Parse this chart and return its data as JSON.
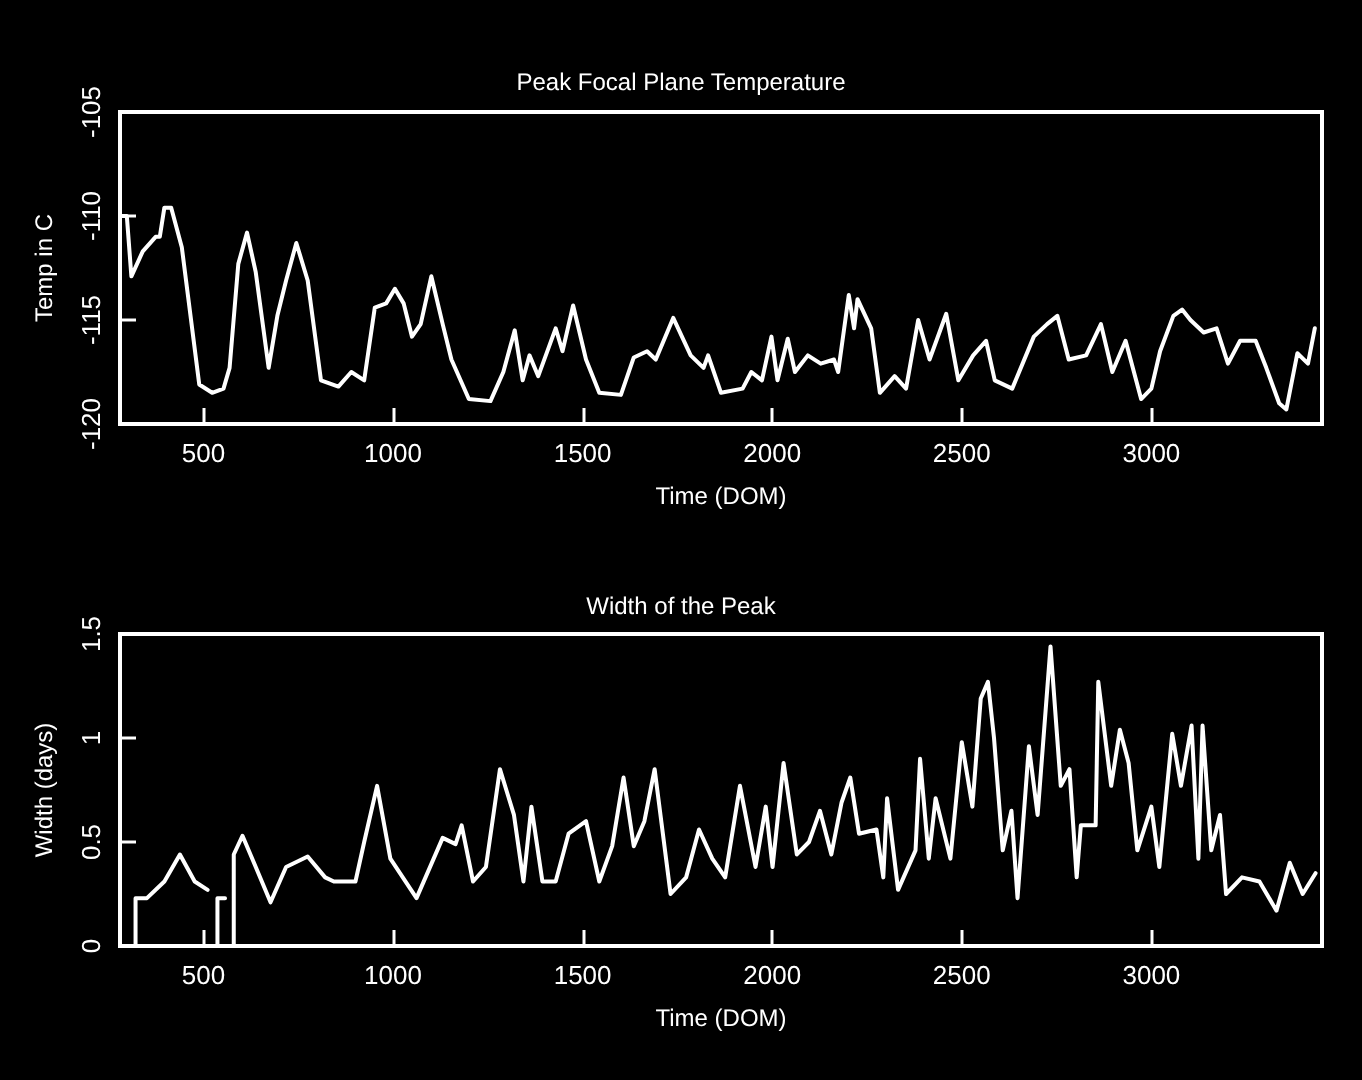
{
  "chart_data": [
    {
      "type": "line",
      "title": "Peak Focal Plane Temperature",
      "xlabel": "Time (DOM)",
      "ylabel": "Temp in C",
      "xlim": [
        280,
        3450
      ],
      "xticks": [
        500,
        1000,
        1500,
        2000,
        2500,
        3000
      ],
      "ylim": [
        -120,
        -105
      ],
      "yticks": [
        -120,
        -115,
        -110,
        -105
      ],
      "grid": false,
      "marker": "none",
      "line_style": "solid",
      "series": [
        {
          "color": "#ffffff",
          "x": [
            282,
            298,
            310,
            340,
            374,
            385,
            397,
            415,
            443,
            489,
            523,
            553,
            569,
            592,
            615,
            638,
            672,
            695,
            718,
            745,
            775,
            810,
            856,
            890,
            924,
            952,
            982,
            1005,
            1028,
            1050,
            1073,
            1101,
            1131,
            1154,
            1200,
            1257,
            1291,
            1321,
            1342,
            1360,
            1383,
            1429,
            1447,
            1475,
            1509,
            1544,
            1601,
            1635,
            1670,
            1693,
            1739,
            1785,
            1819,
            1831,
            1865,
            1922,
            1945,
            1973,
            1998,
            2014,
            2041,
            2060,
            2094,
            2128,
            2163,
            2174,
            2202,
            2216,
            2225,
            2261,
            2284,
            2323,
            2353,
            2385,
            2415,
            2459,
            2491,
            2530,
            2564,
            2587,
            2633,
            2690,
            2725,
            2752,
            2782,
            2828,
            2867,
            2897,
            2932,
            2973,
            3000,
            3023,
            3058,
            3081,
            3103,
            3138,
            3172,
            3202,
            3234,
            3275,
            3303,
            3337,
            3356,
            3385,
            3413,
            3431
          ],
          "values": [
            -110,
            -110,
            -112.9,
            -111.7,
            -111,
            -111,
            -109.6,
            -109.6,
            -111.5,
            -118.1,
            -118.5,
            -118.3,
            -117.3,
            -112.3,
            -110.8,
            -112.7,
            -117.3,
            -114.8,
            -113.1,
            -111.3,
            -113.1,
            -117.9,
            -118.2,
            -117.5,
            -117.9,
            -114.4,
            -114.2,
            -113.5,
            -114.2,
            -115.8,
            -115.2,
            -112.9,
            -115.2,
            -116.9,
            -118.8,
            -118.9,
            -117.5,
            -115.5,
            -117.9,
            -116.7,
            -117.7,
            -115.4,
            -116.5,
            -114.3,
            -116.9,
            -118.5,
            -118.6,
            -116.8,
            -116.5,
            -116.9,
            -114.9,
            -116.7,
            -117.3,
            -116.7,
            -118.5,
            -118.3,
            -117.5,
            -117.9,
            -115.8,
            -117.9,
            -115.9,
            -117.5,
            -116.7,
            -117.1,
            -116.9,
            -117.5,
            -113.8,
            -115.4,
            -114,
            -115.4,
            -118.5,
            -117.7,
            -118.3,
            -115,
            -116.9,
            -114.7,
            -117.9,
            -116.7,
            -116,
            -117.9,
            -118.3,
            -115.8,
            -115.2,
            -114.8,
            -116.9,
            -116.7,
            -115.2,
            -117.5,
            -116,
            -118.8,
            -118.3,
            -116.5,
            -114.8,
            -114.5,
            -115,
            -115.6,
            -115.4,
            -117.1,
            -116,
            -116,
            -117.3,
            -119,
            -119.3,
            -116.6,
            -117.1,
            -115.4
          ]
        }
      ]
    },
    {
      "type": "line",
      "title": "Width of the Peak",
      "xlabel": "Time (DOM)",
      "ylabel": "Width (days)",
      "xlim": [
        280,
        3450
      ],
      "xticks": [
        500,
        1000,
        1500,
        2000,
        2500,
        3000
      ],
      "ylim": [
        0,
        1.5
      ],
      "yticks": [
        0,
        0.5,
        1,
        1.5
      ],
      "grid": false,
      "marker": "none",
      "line_style": "solid",
      "series": [
        {
          "color": "#ffffff",
          "x": [
            321,
            321,
            351,
            397,
            438,
            477,
            511,
            524,
            537,
            537,
            557,
            568,
            580,
            580,
            603,
            638,
            677,
            718,
            775,
            821,
            844,
            901,
            924,
            958,
            993,
            1062,
            1131,
            1165,
            1181,
            1211,
            1245,
            1282,
            1319,
            1344,
            1365,
            1394,
            1429,
            1463,
            1509,
            1544,
            1578,
            1608,
            1635,
            1663,
            1690,
            1732,
            1773,
            1807,
            1842,
            1876,
            1915,
            1956,
            1983,
            2001,
            2030,
            2065,
            2097,
            2126,
            2156,
            2183,
            2206,
            2229,
            2275,
            2293,
            2303,
            2332,
            2378,
            2390,
            2413,
            2431,
            2470,
            2500,
            2528,
            2550,
            2569,
            2585,
            2608,
            2631,
            2647,
            2677,
            2700,
            2734,
            2761,
            2784,
            2803,
            2814,
            2853,
            2860,
            2894,
            2917,
            2940,
            2963,
            3000,
            3021,
            3055,
            3078,
            3106,
            3124,
            3135,
            3158,
            3181,
            3197,
            3239,
            3285,
            3330,
            3365,
            3399,
            3433
          ],
          "values": [
            0,
            0.23,
            0.23,
            0.31,
            0.44,
            0.31,
            0.27,
            null,
            0,
            0.23,
            0.23,
            null,
            0,
            0.44,
            0.53,
            0.38,
            0.21,
            0.38,
            0.43,
            0.33,
            0.31,
            0.31,
            0.5,
            0.77,
            0.42,
            0.23,
            0.52,
            0.49,
            0.58,
            0.31,
            0.38,
            0.85,
            0.63,
            0.31,
            0.67,
            0.31,
            0.31,
            0.54,
            0.6,
            0.31,
            0.48,
            0.81,
            0.48,
            0.6,
            0.85,
            0.25,
            0.33,
            0.56,
            0.42,
            0.33,
            0.77,
            0.38,
            0.67,
            0.38,
            0.88,
            0.44,
            0.5,
            0.65,
            0.44,
            0.69,
            0.81,
            0.54,
            0.56,
            0.33,
            0.71,
            0.27,
            0.46,
            0.9,
            0.42,
            0.71,
            0.42,
            0.98,
            0.67,
            1.19,
            1.27,
            1,
            0.46,
            0.65,
            0.23,
            0.96,
            0.63,
            1.44,
            0.77,
            0.85,
            0.33,
            0.58,
            0.58,
            1.27,
            0.77,
            1.04,
            0.88,
            0.46,
            0.67,
            0.38,
            1.02,
            0.77,
            1.06,
            0.42,
            1.06,
            0.46,
            0.63,
            0.25,
            0.33,
            0.31,
            0.17,
            0.4,
            0.25,
            0.35
          ]
        }
      ]
    }
  ]
}
